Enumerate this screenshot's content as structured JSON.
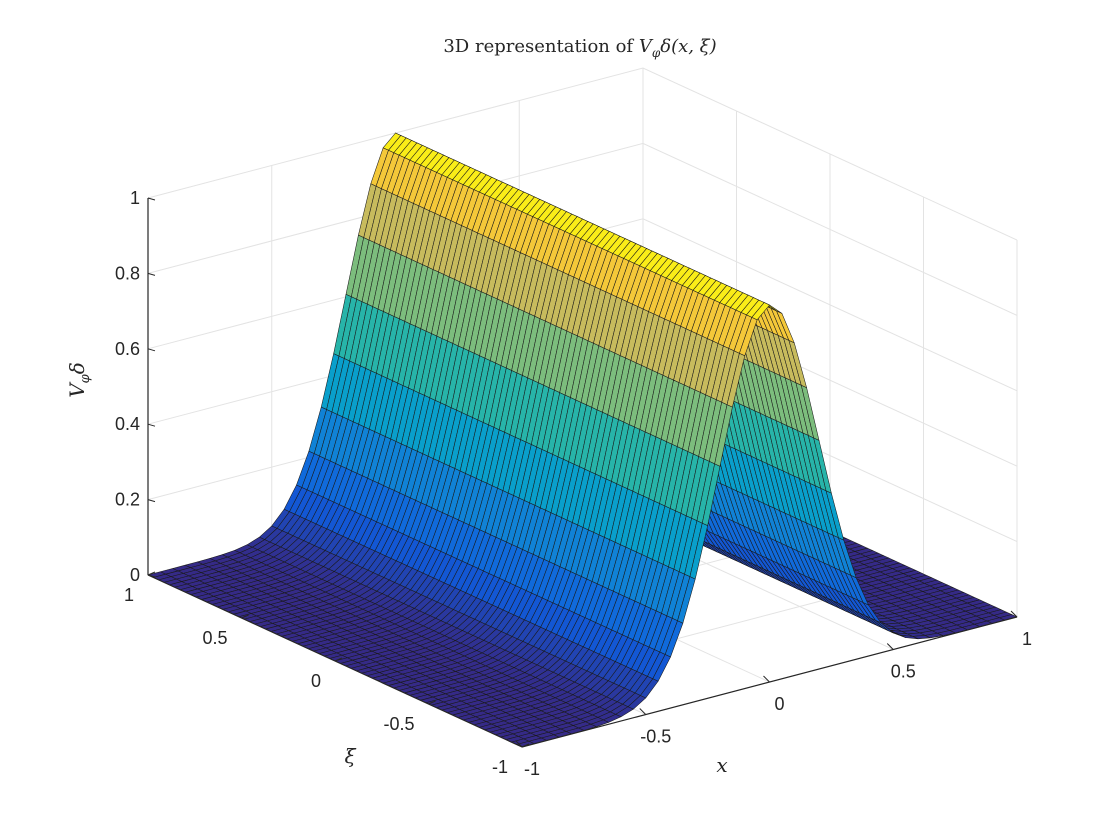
{
  "chart_data": {
    "type": "surface",
    "title": {
      "prefix": "3D representation of ",
      "fn": "V",
      "sub": "φ",
      "delta": "δ",
      "args": "(x, ξ)"
    },
    "xlabel": "x",
    "ylabel": "ξ",
    "zlabel": {
      "fn": "V",
      "sub": "φ",
      "delta": "δ"
    },
    "xlim": [
      -1,
      1
    ],
    "ylim": [
      -1,
      1
    ],
    "zlim": [
      0,
      1
    ],
    "x_ticks": [
      -1,
      -0.5,
      0,
      0.5,
      1
    ],
    "x_tick_labels": [
      "-1",
      "-0.5",
      "0",
      "0.5",
      "1"
    ],
    "y_ticks": [
      -1,
      -0.5,
      0,
      0.5,
      1
    ],
    "y_tick_labels": [
      "-1",
      "-0.5",
      "0",
      "0.5",
      "1"
    ],
    "z_ticks": [
      0,
      0.2,
      0.4,
      0.6,
      0.8,
      1
    ],
    "z_tick_labels": [
      "0",
      "0.2",
      "0.4",
      "0.6",
      "0.8",
      "1"
    ],
    "grid": true,
    "colormap": "parula",
    "surface": {
      "function": "exp(-x^2 / 0.08)",
      "description": "Gaussian ridge along ξ, independent of ξ",
      "peak": 1,
      "peak_at_x": 0,
      "grid_points_x": 41,
      "grid_points_xi": 71
    }
  }
}
